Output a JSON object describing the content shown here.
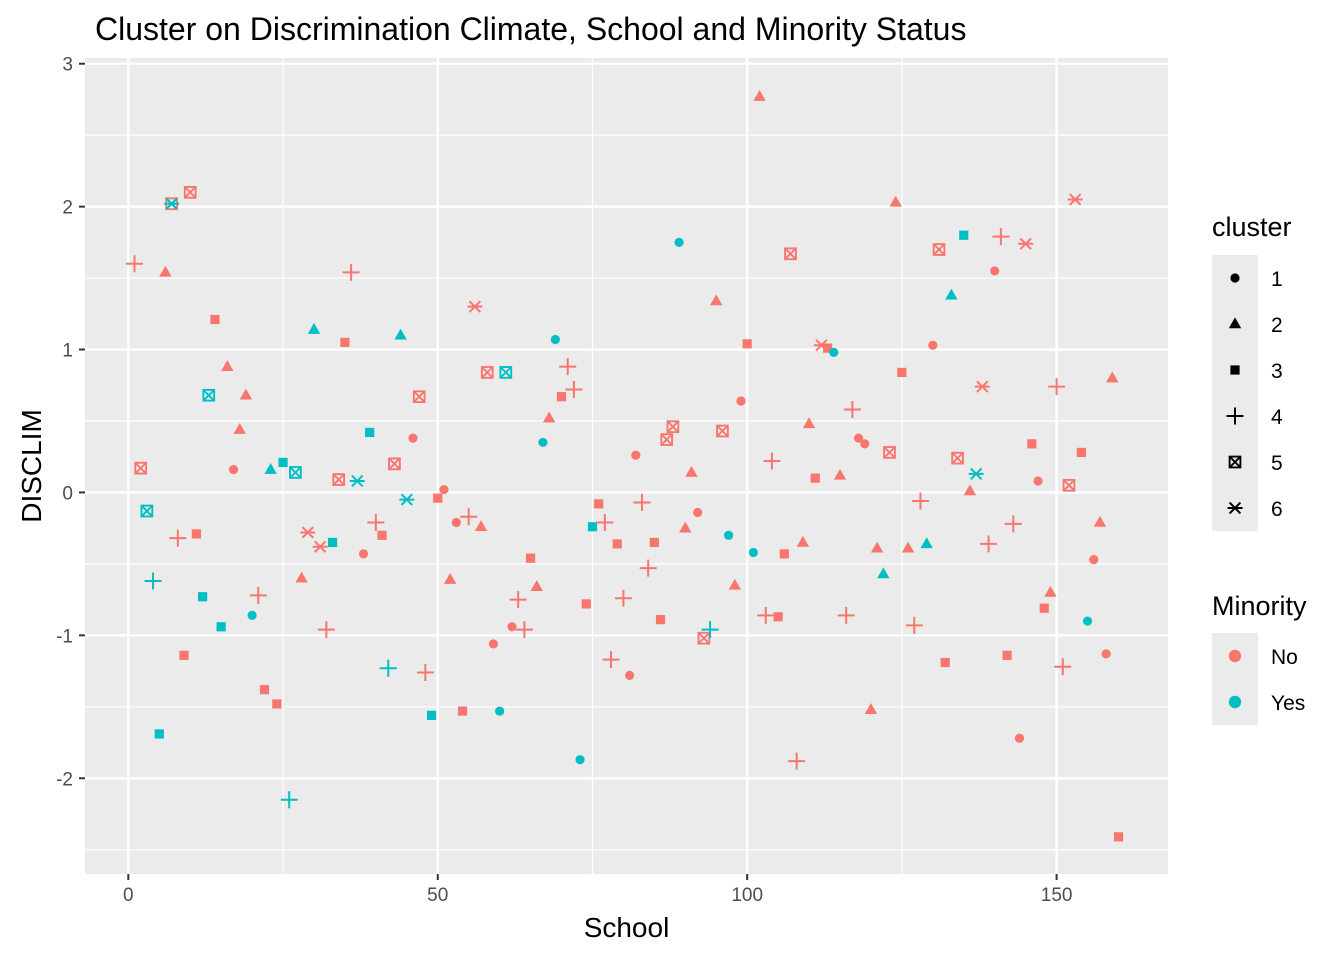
{
  "chart_data": {
    "type": "scatter",
    "title": "Cluster on Discrimination Climate, School and Minority Status",
    "xlabel": "School",
    "ylabel": "DISCLIM",
    "xlim": [
      -7,
      168
    ],
    "ylim": [
      -2.67,
      3.04
    ],
    "x_ticks": [
      0,
      50,
      100,
      150
    ],
    "y_ticks": [
      -2,
      -1,
      0,
      1,
      2,
      3
    ],
    "x_tick_labels": [
      "0",
      "50",
      "100",
      "150"
    ],
    "y_tick_labels": [
      "-2",
      "-1",
      "0",
      "1",
      "2",
      "3"
    ],
    "grid": true,
    "legends": [
      {
        "title": "cluster",
        "encodes": "shape",
        "entries": [
          {
            "label": "1",
            "shape": "circle"
          },
          {
            "label": "2",
            "shape": "triangle"
          },
          {
            "label": "3",
            "shape": "square"
          },
          {
            "label": "4",
            "shape": "plus"
          },
          {
            "label": "5",
            "shape": "square-cross"
          },
          {
            "label": "6",
            "shape": "asterisk"
          }
        ]
      },
      {
        "title": "Minority",
        "encodes": "color",
        "entries": [
          {
            "label": "No",
            "color": "#F8766D"
          },
          {
            "label": "Yes",
            "color": "#00BFC4"
          }
        ]
      }
    ],
    "legend_position": "right",
    "points": [
      {
        "x": 1,
        "y": 1.6,
        "cluster": 4,
        "minority": "No"
      },
      {
        "x": 2,
        "y": 0.17,
        "cluster": 5,
        "minority": "No"
      },
      {
        "x": 3,
        "y": -0.13,
        "cluster": 5,
        "minority": "Yes"
      },
      {
        "x": 4,
        "y": -0.62,
        "cluster": 4,
        "minority": "Yes"
      },
      {
        "x": 5,
        "y": -1.69,
        "cluster": 3,
        "minority": "Yes"
      },
      {
        "x": 6,
        "y": 1.54,
        "cluster": 2,
        "minority": "No"
      },
      {
        "x": 7,
        "y": 2.02,
        "cluster": 5,
        "minority": "No"
      },
      {
        "x": 7,
        "y": 2.02,
        "cluster": 6,
        "minority": "Yes"
      },
      {
        "x": 8,
        "y": -0.32,
        "cluster": 4,
        "minority": "No"
      },
      {
        "x": 9,
        "y": -1.14,
        "cluster": 3,
        "minority": "No"
      },
      {
        "x": 10,
        "y": 2.1,
        "cluster": 5,
        "minority": "No"
      },
      {
        "x": 11,
        "y": -0.29,
        "cluster": 3,
        "minority": "No"
      },
      {
        "x": 12,
        "y": -0.73,
        "cluster": 3,
        "minority": "Yes"
      },
      {
        "x": 13,
        "y": 0.68,
        "cluster": 5,
        "minority": "Yes"
      },
      {
        "x": 14,
        "y": 1.21,
        "cluster": 3,
        "minority": "No"
      },
      {
        "x": 15,
        "y": -0.94,
        "cluster": 3,
        "minority": "Yes"
      },
      {
        "x": 16,
        "y": 0.88,
        "cluster": 2,
        "minority": "No"
      },
      {
        "x": 17,
        "y": 0.16,
        "cluster": 1,
        "minority": "No"
      },
      {
        "x": 18,
        "y": 0.44,
        "cluster": 2,
        "minority": "No"
      },
      {
        "x": 19,
        "y": 0.68,
        "cluster": 2,
        "minority": "No"
      },
      {
        "x": 20,
        "y": -0.86,
        "cluster": 1,
        "minority": "Yes"
      },
      {
        "x": 21,
        "y": -0.72,
        "cluster": 4,
        "minority": "No"
      },
      {
        "x": 22,
        "y": -1.38,
        "cluster": 3,
        "minority": "No"
      },
      {
        "x": 23,
        "y": 0.16,
        "cluster": 2,
        "minority": "Yes"
      },
      {
        "x": 24,
        "y": -1.48,
        "cluster": 3,
        "minority": "No"
      },
      {
        "x": 25,
        "y": 0.21,
        "cluster": 3,
        "minority": "Yes"
      },
      {
        "x": 26,
        "y": -2.15,
        "cluster": 4,
        "minority": "Yes"
      },
      {
        "x": 27,
        "y": 0.14,
        "cluster": 5,
        "minority": "Yes"
      },
      {
        "x": 28,
        "y": -0.6,
        "cluster": 2,
        "minority": "No"
      },
      {
        "x": 29,
        "y": -0.28,
        "cluster": 6,
        "minority": "No"
      },
      {
        "x": 30,
        "y": 1.14,
        "cluster": 2,
        "minority": "Yes"
      },
      {
        "x": 31,
        "y": -0.38,
        "cluster": 6,
        "minority": "No"
      },
      {
        "x": 32,
        "y": -0.96,
        "cluster": 4,
        "minority": "No"
      },
      {
        "x": 33,
        "y": -0.35,
        "cluster": 3,
        "minority": "Yes"
      },
      {
        "x": 34,
        "y": 0.09,
        "cluster": 5,
        "minority": "No"
      },
      {
        "x": 35,
        "y": 1.05,
        "cluster": 3,
        "minority": "No"
      },
      {
        "x": 36,
        "y": 1.54,
        "cluster": 4,
        "minority": "No"
      },
      {
        "x": 37,
        "y": 0.08,
        "cluster": 6,
        "minority": "Yes"
      },
      {
        "x": 38,
        "y": -0.43,
        "cluster": 1,
        "minority": "No"
      },
      {
        "x": 39,
        "y": 0.42,
        "cluster": 3,
        "minority": "Yes"
      },
      {
        "x": 40,
        "y": -0.21,
        "cluster": 4,
        "minority": "No"
      },
      {
        "x": 41,
        "y": -0.3,
        "cluster": 3,
        "minority": "No"
      },
      {
        "x": 42,
        "y": -1.23,
        "cluster": 4,
        "minority": "Yes"
      },
      {
        "x": 43,
        "y": 0.2,
        "cluster": 5,
        "minority": "No"
      },
      {
        "x": 44,
        "y": 1.1,
        "cluster": 2,
        "minority": "Yes"
      },
      {
        "x": 45,
        "y": -0.05,
        "cluster": 6,
        "minority": "Yes"
      },
      {
        "x": 46,
        "y": 0.38,
        "cluster": 1,
        "minority": "No"
      },
      {
        "x": 47,
        "y": 0.67,
        "cluster": 5,
        "minority": "No"
      },
      {
        "x": 48,
        "y": -1.26,
        "cluster": 4,
        "minority": "No"
      },
      {
        "x": 49,
        "y": -1.56,
        "cluster": 3,
        "minority": "Yes"
      },
      {
        "x": 50,
        "y": -0.04,
        "cluster": 3,
        "minority": "No"
      },
      {
        "x": 51,
        "y": 0.02,
        "cluster": 1,
        "minority": "No"
      },
      {
        "x": 52,
        "y": -0.61,
        "cluster": 2,
        "minority": "No"
      },
      {
        "x": 53,
        "y": -0.21,
        "cluster": 1,
        "minority": "No"
      },
      {
        "x": 54,
        "y": -1.53,
        "cluster": 3,
        "minority": "No"
      },
      {
        "x": 55,
        "y": -0.17,
        "cluster": 4,
        "minority": "No"
      },
      {
        "x": 56,
        "y": 1.3,
        "cluster": 6,
        "minority": "No"
      },
      {
        "x": 57,
        "y": -0.24,
        "cluster": 2,
        "minority": "No"
      },
      {
        "x": 58,
        "y": 0.84,
        "cluster": 5,
        "minority": "No"
      },
      {
        "x": 59,
        "y": -1.06,
        "cluster": 1,
        "minority": "No"
      },
      {
        "x": 60,
        "y": -1.53,
        "cluster": 1,
        "minority": "Yes"
      },
      {
        "x": 61,
        "y": 0.84,
        "cluster": 5,
        "minority": "Yes"
      },
      {
        "x": 62,
        "y": -0.94,
        "cluster": 1,
        "minority": "No"
      },
      {
        "x": 63,
        "y": -0.75,
        "cluster": 4,
        "minority": "No"
      },
      {
        "x": 64,
        "y": -0.96,
        "cluster": 4,
        "minority": "No"
      },
      {
        "x": 65,
        "y": -0.46,
        "cluster": 3,
        "minority": "No"
      },
      {
        "x": 66,
        "y": -0.66,
        "cluster": 2,
        "minority": "No"
      },
      {
        "x": 67,
        "y": 0.35,
        "cluster": 1,
        "minority": "Yes"
      },
      {
        "x": 68,
        "y": 0.52,
        "cluster": 2,
        "minority": "No"
      },
      {
        "x": 69,
        "y": 1.07,
        "cluster": 1,
        "minority": "Yes"
      },
      {
        "x": 70,
        "y": 0.67,
        "cluster": 3,
        "minority": "No"
      },
      {
        "x": 71,
        "y": 0.88,
        "cluster": 4,
        "minority": "No"
      },
      {
        "x": 72,
        "y": 0.72,
        "cluster": 4,
        "minority": "No"
      },
      {
        "x": 73,
        "y": -1.87,
        "cluster": 1,
        "minority": "Yes"
      },
      {
        "x": 74,
        "y": -0.78,
        "cluster": 3,
        "minority": "No"
      },
      {
        "x": 75,
        "y": -0.24,
        "cluster": 3,
        "minority": "Yes"
      },
      {
        "x": 76,
        "y": -0.08,
        "cluster": 3,
        "minority": "No"
      },
      {
        "x": 77,
        "y": -0.21,
        "cluster": 4,
        "minority": "No"
      },
      {
        "x": 78,
        "y": -1.17,
        "cluster": 4,
        "minority": "No"
      },
      {
        "x": 79,
        "y": -0.36,
        "cluster": 3,
        "minority": "No"
      },
      {
        "x": 80,
        "y": -0.74,
        "cluster": 4,
        "minority": "No"
      },
      {
        "x": 81,
        "y": -1.28,
        "cluster": 1,
        "minority": "No"
      },
      {
        "x": 82,
        "y": 0.26,
        "cluster": 1,
        "minority": "No"
      },
      {
        "x": 83,
        "y": -0.07,
        "cluster": 4,
        "minority": "No"
      },
      {
        "x": 84,
        "y": -0.53,
        "cluster": 4,
        "minority": "No"
      },
      {
        "x": 85,
        "y": -0.35,
        "cluster": 3,
        "minority": "No"
      },
      {
        "x": 86,
        "y": -0.89,
        "cluster": 3,
        "minority": "No"
      },
      {
        "x": 87,
        "y": 0.37,
        "cluster": 5,
        "minority": "No"
      },
      {
        "x": 88,
        "y": 0.46,
        "cluster": 5,
        "minority": "No"
      },
      {
        "x": 89,
        "y": 1.75,
        "cluster": 1,
        "minority": "Yes"
      },
      {
        "x": 90,
        "y": -0.25,
        "cluster": 2,
        "minority": "No"
      },
      {
        "x": 91,
        "y": 0.14,
        "cluster": 2,
        "minority": "No"
      },
      {
        "x": 92,
        "y": -0.14,
        "cluster": 1,
        "minority": "No"
      },
      {
        "x": 93,
        "y": -1.02,
        "cluster": 5,
        "minority": "No"
      },
      {
        "x": 94,
        "y": -0.96,
        "cluster": 4,
        "minority": "Yes"
      },
      {
        "x": 95,
        "y": 1.34,
        "cluster": 2,
        "minority": "No"
      },
      {
        "x": 96,
        "y": 0.43,
        "cluster": 5,
        "minority": "No"
      },
      {
        "x": 97,
        "y": -0.3,
        "cluster": 1,
        "minority": "Yes"
      },
      {
        "x": 98,
        "y": -0.65,
        "cluster": 2,
        "minority": "No"
      },
      {
        "x": 99,
        "y": 0.64,
        "cluster": 1,
        "minority": "No"
      },
      {
        "x": 100,
        "y": 1.04,
        "cluster": 3,
        "minority": "No"
      },
      {
        "x": 101,
        "y": -0.42,
        "cluster": 1,
        "minority": "Yes"
      },
      {
        "x": 102,
        "y": 2.77,
        "cluster": 2,
        "minority": "No"
      },
      {
        "x": 103,
        "y": -0.86,
        "cluster": 4,
        "minority": "No"
      },
      {
        "x": 104,
        "y": 0.22,
        "cluster": 4,
        "minority": "No"
      },
      {
        "x": 105,
        "y": -0.87,
        "cluster": 3,
        "minority": "No"
      },
      {
        "x": 106,
        "y": -0.43,
        "cluster": 3,
        "minority": "No"
      },
      {
        "x": 107,
        "y": 1.67,
        "cluster": 5,
        "minority": "No"
      },
      {
        "x": 108,
        "y": -1.88,
        "cluster": 4,
        "minority": "No"
      },
      {
        "x": 109,
        "y": -0.35,
        "cluster": 2,
        "minority": "No"
      },
      {
        "x": 110,
        "y": 0.48,
        "cluster": 2,
        "minority": "No"
      },
      {
        "x": 111,
        "y": 0.1,
        "cluster": 3,
        "minority": "No"
      },
      {
        "x": 112,
        "y": 1.03,
        "cluster": 6,
        "minority": "No"
      },
      {
        "x": 113,
        "y": 1.01,
        "cluster": 3,
        "minority": "No"
      },
      {
        "x": 114,
        "y": 0.98,
        "cluster": 1,
        "minority": "Yes"
      },
      {
        "x": 115,
        "y": 0.12,
        "cluster": 2,
        "minority": "No"
      },
      {
        "x": 116,
        "y": -0.86,
        "cluster": 4,
        "minority": "No"
      },
      {
        "x": 117,
        "y": 0.58,
        "cluster": 4,
        "minority": "No"
      },
      {
        "x": 118,
        "y": 0.38,
        "cluster": 1,
        "minority": "No"
      },
      {
        "x": 119,
        "y": 0.34,
        "cluster": 1,
        "minority": "No"
      },
      {
        "x": 120,
        "y": -1.52,
        "cluster": 2,
        "minority": "No"
      },
      {
        "x": 121,
        "y": -0.39,
        "cluster": 2,
        "minority": "No"
      },
      {
        "x": 122,
        "y": -0.57,
        "cluster": 2,
        "minority": "Yes"
      },
      {
        "x": 123,
        "y": 0.28,
        "cluster": 5,
        "minority": "No"
      },
      {
        "x": 124,
        "y": 2.03,
        "cluster": 2,
        "minority": "No"
      },
      {
        "x": 125,
        "y": 0.84,
        "cluster": 3,
        "minority": "No"
      },
      {
        "x": 126,
        "y": -0.39,
        "cluster": 2,
        "minority": "No"
      },
      {
        "x": 127,
        "y": -0.93,
        "cluster": 4,
        "minority": "No"
      },
      {
        "x": 128,
        "y": -0.06,
        "cluster": 4,
        "minority": "No"
      },
      {
        "x": 129,
        "y": -0.36,
        "cluster": 2,
        "minority": "Yes"
      },
      {
        "x": 130,
        "y": 1.03,
        "cluster": 1,
        "minority": "No"
      },
      {
        "x": 131,
        "y": 1.7,
        "cluster": 5,
        "minority": "No"
      },
      {
        "x": 132,
        "y": -1.19,
        "cluster": 3,
        "minority": "No"
      },
      {
        "x": 133,
        "y": 1.38,
        "cluster": 2,
        "minority": "Yes"
      },
      {
        "x": 134,
        "y": 0.24,
        "cluster": 5,
        "minority": "No"
      },
      {
        "x": 135,
        "y": 1.8,
        "cluster": 3,
        "minority": "Yes"
      },
      {
        "x": 136,
        "y": 0.01,
        "cluster": 2,
        "minority": "No"
      },
      {
        "x": 137,
        "y": 0.13,
        "cluster": 6,
        "minority": "Yes"
      },
      {
        "x": 138,
        "y": 0.74,
        "cluster": 6,
        "minority": "No"
      },
      {
        "x": 139,
        "y": -0.36,
        "cluster": 4,
        "minority": "No"
      },
      {
        "x": 140,
        "y": 1.55,
        "cluster": 1,
        "minority": "No"
      },
      {
        "x": 141,
        "y": 1.79,
        "cluster": 4,
        "minority": "No"
      },
      {
        "x": 142,
        "y": -1.14,
        "cluster": 3,
        "minority": "No"
      },
      {
        "x": 143,
        "y": -0.22,
        "cluster": 4,
        "minority": "No"
      },
      {
        "x": 144,
        "y": -1.72,
        "cluster": 1,
        "minority": "No"
      },
      {
        "x": 145,
        "y": 1.74,
        "cluster": 6,
        "minority": "No"
      },
      {
        "x": 146,
        "y": 0.34,
        "cluster": 3,
        "minority": "No"
      },
      {
        "x": 147,
        "y": 0.08,
        "cluster": 1,
        "minority": "No"
      },
      {
        "x": 148,
        "y": -0.81,
        "cluster": 3,
        "minority": "No"
      },
      {
        "x": 149,
        "y": -0.7,
        "cluster": 2,
        "minority": "No"
      },
      {
        "x": 150,
        "y": 0.74,
        "cluster": 4,
        "minority": "No"
      },
      {
        "x": 151,
        "y": -1.22,
        "cluster": 4,
        "minority": "No"
      },
      {
        "x": 152,
        "y": 0.05,
        "cluster": 5,
        "minority": "No"
      },
      {
        "x": 153,
        "y": 2.05,
        "cluster": 6,
        "minority": "No"
      },
      {
        "x": 154,
        "y": 0.28,
        "cluster": 3,
        "minority": "No"
      },
      {
        "x": 155,
        "y": -0.9,
        "cluster": 1,
        "minority": "Yes"
      },
      {
        "x": 156,
        "y": -0.47,
        "cluster": 1,
        "minority": "No"
      },
      {
        "x": 157,
        "y": -0.21,
        "cluster": 2,
        "minority": "No"
      },
      {
        "x": 158,
        "y": -1.13,
        "cluster": 1,
        "minority": "No"
      },
      {
        "x": 159,
        "y": 0.8,
        "cluster": 2,
        "minority": "No"
      },
      {
        "x": 160,
        "y": -2.41,
        "cluster": 3,
        "minority": "No"
      }
    ]
  }
}
